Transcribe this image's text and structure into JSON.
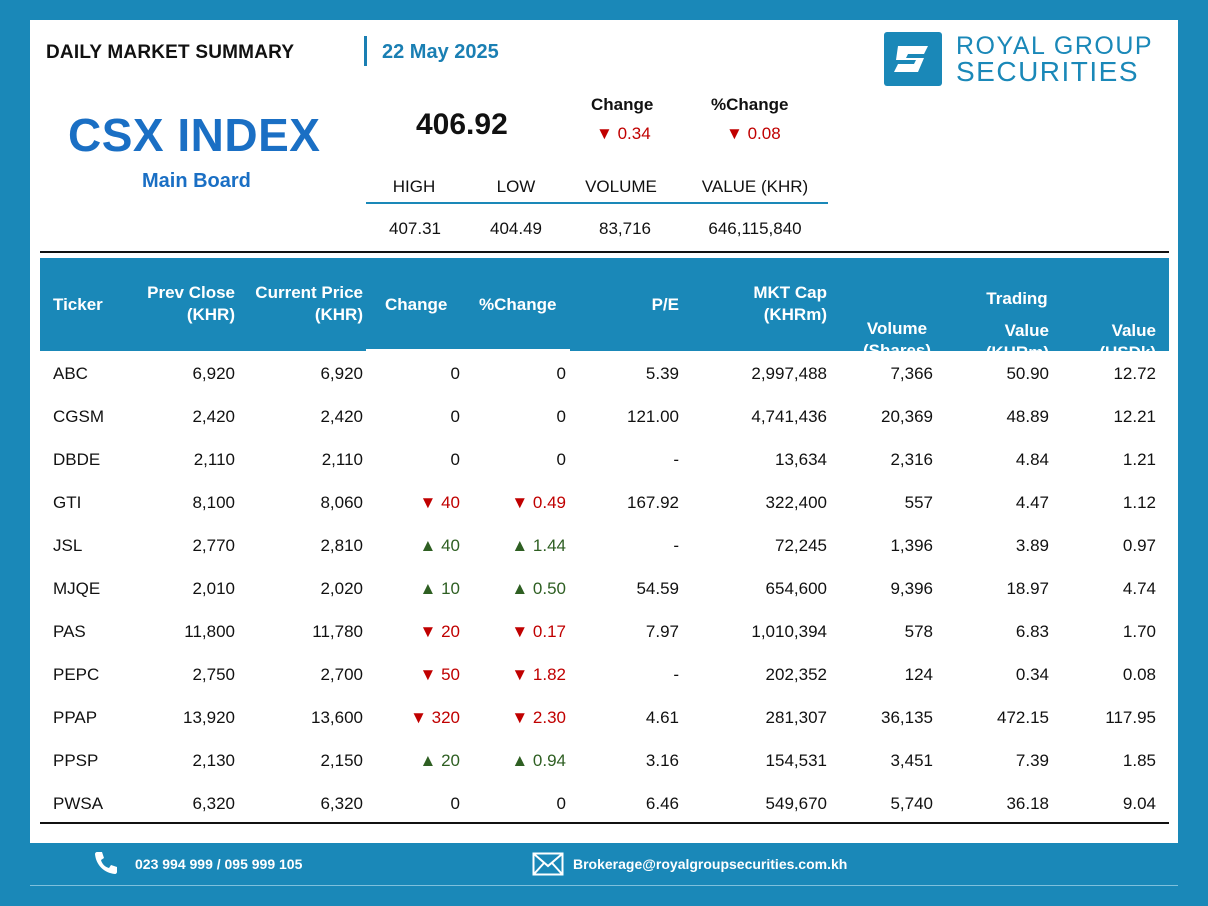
{
  "header": {
    "title": "DAILY MARKET SUMMARY",
    "date": "22 May 2025"
  },
  "logo": {
    "line1": "ROYAL GROUP",
    "line2": "SECURITIES",
    "icon": "royal-group-s-logo"
  },
  "index": {
    "name": "CSX INDEX",
    "board": "Main Board",
    "value": "406.92",
    "change_label": "Change",
    "change_value": "0.34",
    "change_direction": "down",
    "pct_change_label": "%Change",
    "pct_change_value": "0.08",
    "pct_change_direction": "down"
  },
  "stats": {
    "high_label": "HIGH",
    "low_label": "LOW",
    "volume_label": "VOLUME",
    "value_label": "VALUE (KHR)",
    "high": "407.31",
    "low": "404.49",
    "volume": "83,716",
    "value": "646,115,840"
  },
  "table": {
    "headers": {
      "ticker": "Ticker",
      "prev_close_1": "Prev Close",
      "prev_close_2": "(KHR)",
      "current_price_1": "Current Price",
      "current_price_2": "(KHR)",
      "change": "Change",
      "pct_change": "%Change",
      "pe": "P/E",
      "mkt_cap_1": "MKT Cap",
      "mkt_cap_2": "(KHRm)",
      "volume_1": "Volume",
      "volume_2": "(Shares)",
      "trading": "Trading",
      "value_khr_1": "Value",
      "value_khr_2": "(KHRm)",
      "value_usd_1": "Value",
      "value_usd_2": "(USDk)"
    },
    "rows": [
      {
        "ticker": "ABC",
        "prev": "6,920",
        "cur": "6,920",
        "dir": "none",
        "chg": "0",
        "pct": "0",
        "pe": "5.39",
        "cap": "2,997,488",
        "vol": "7,366",
        "vkhr": "50.90",
        "vusd": "12.72"
      },
      {
        "ticker": "CGSM",
        "prev": "2,420",
        "cur": "2,420",
        "dir": "none",
        "chg": "0",
        "pct": "0",
        "pe": "121.00",
        "cap": "4,741,436",
        "vol": "20,369",
        "vkhr": "48.89",
        "vusd": "12.21"
      },
      {
        "ticker": "DBDE",
        "prev": "2,110",
        "cur": "2,110",
        "dir": "none",
        "chg": "0",
        "pct": "0",
        "pe": "-",
        "cap": "13,634",
        "vol": "2,316",
        "vkhr": "4.84",
        "vusd": "1.21"
      },
      {
        "ticker": "GTI",
        "prev": "8,100",
        "cur": "8,060",
        "dir": "down",
        "chg": "40",
        "pct": "0.49",
        "pe": "167.92",
        "cap": "322,400",
        "vol": "557",
        "vkhr": "4.47",
        "vusd": "1.12"
      },
      {
        "ticker": "JSL",
        "prev": "2,770",
        "cur": "2,810",
        "dir": "up",
        "chg": "40",
        "pct": "1.44",
        "pe": "-",
        "cap": "72,245",
        "vol": "1,396",
        "vkhr": "3.89",
        "vusd": "0.97"
      },
      {
        "ticker": "MJQE",
        "prev": "2,010",
        "cur": "2,020",
        "dir": "up",
        "chg": "10",
        "pct": "0.50",
        "pe": "54.59",
        "cap": "654,600",
        "vol": "9,396",
        "vkhr": "18.97",
        "vusd": "4.74"
      },
      {
        "ticker": "PAS",
        "prev": "11,800",
        "cur": "11,780",
        "dir": "down",
        "chg": "20",
        "pct": "0.17",
        "pe": "7.97",
        "cap": "1,010,394",
        "vol": "578",
        "vkhr": "6.83",
        "vusd": "1.70"
      },
      {
        "ticker": "PEPC",
        "prev": "2,750",
        "cur": "2,700",
        "dir": "down",
        "chg": "50",
        "pct": "1.82",
        "pe": "-",
        "cap": "202,352",
        "vol": "124",
        "vkhr": "0.34",
        "vusd": "0.08"
      },
      {
        "ticker": "PPAP",
        "prev": "13,920",
        "cur": "13,600",
        "dir": "down",
        "chg": "320",
        "pct": "2.30",
        "pe": "4.61",
        "cap": "281,307",
        "vol": "36,135",
        "vkhr": "472.15",
        "vusd": "117.95"
      },
      {
        "ticker": "PPSP",
        "prev": "2,130",
        "cur": "2,150",
        "dir": "up",
        "chg": "20",
        "pct": "0.94",
        "pe": "3.16",
        "cap": "154,531",
        "vol": "3,451",
        "vkhr": "7.39",
        "vusd": "1.85"
      },
      {
        "ticker": "PWSA",
        "prev": "6,320",
        "cur": "6,320",
        "dir": "none",
        "chg": "0",
        "pct": "0",
        "pe": "6.46",
        "cap": "549,670",
        "vol": "5,740",
        "vkhr": "36.18",
        "vusd": "9.04"
      }
    ]
  },
  "footer": {
    "phone": "023 994 999 / 095 999 105",
    "phone_icon": "phone-icon",
    "email": "Brokerage@royalgroupsecurities.com.kh",
    "email_icon": "envelope-icon"
  },
  "colors": {
    "brand_blue": "#1a88b8",
    "index_blue": "#1a6fc4",
    "down_red": "#c00000",
    "up_green": "#2e5f22"
  }
}
